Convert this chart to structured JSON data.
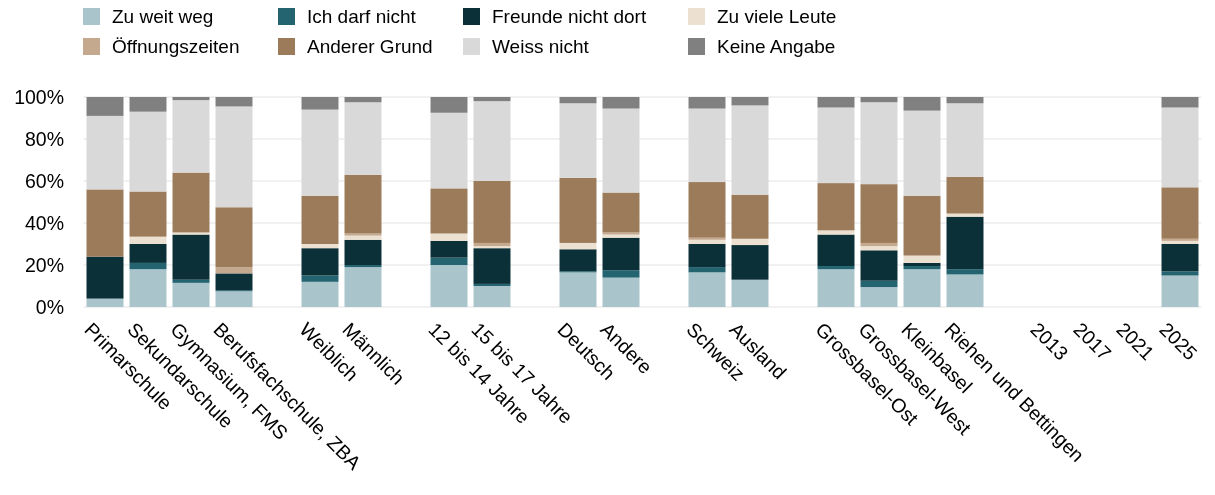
{
  "chart_data": {
    "type": "bar",
    "stacked": true,
    "categories": [
      "Primarschule",
      "Sekundarschule",
      "Gymnasium, FMS",
      "Berufsfachschule, ZBA",
      null,
      "Weiblich",
      "Männlich",
      null,
      "12 bis 14 Jahre",
      "15 bis 17 Jahre",
      null,
      "Deutsch",
      "Andere",
      null,
      "Schweiz",
      "Ausland",
      null,
      "Grossbasel-Ost",
      "Grossbasel-West",
      "Kleinbasel",
      "Riehen und Bettingen",
      null,
      "2013",
      "2017",
      "2021",
      "2025"
    ],
    "series": [
      {
        "name": "Zu weit weg",
        "color": "#a9c4cb",
        "values": [
          4,
          18,
          11.5,
          7.5,
          null,
          12,
          19,
          null,
          20,
          10,
          null,
          16.5,
          14,
          null,
          16.5,
          13,
          null,
          18,
          9.5,
          18,
          15.5,
          null,
          null,
          null,
          null,
          15
        ]
      },
      {
        "name": "Ich darf nicht",
        "color": "#236470",
        "values": [
          0,
          3,
          1.5,
          0.5,
          null,
          3,
          1,
          null,
          3.5,
          1,
          null,
          0.5,
          3.5,
          null,
          2.5,
          0,
          null,
          1.5,
          3,
          1.5,
          2.5,
          null,
          null,
          null,
          null,
          2
        ]
      },
      {
        "name": "Freunde nicht dort",
        "color": "#0b3038",
        "values": [
          20,
          9,
          21.5,
          8,
          null,
          13,
          12,
          null,
          8,
          17,
          null,
          10.5,
          15.5,
          null,
          11,
          16.5,
          null,
          15,
          14.5,
          1.5,
          25,
          null,
          null,
          null,
          null,
          13
        ]
      },
      {
        "name": "Zu viele Leute",
        "color": "#ece0d1",
        "values": [
          0,
          3.5,
          1,
          0,
          null,
          2,
          2,
          null,
          3.5,
          1,
          null,
          3,
          1.5,
          null,
          2,
          3,
          null,
          2,
          2,
          3.5,
          1.5,
          null,
          null,
          null,
          null,
          1.5
        ]
      },
      {
        "name": "Öffnungszeiten",
        "color": "#c4a98f",
        "values": [
          0,
          0,
          0,
          3,
          null,
          0,
          1,
          null,
          0,
          1.5,
          null,
          0,
          1,
          null,
          1,
          0,
          null,
          0,
          1.5,
          0,
          0,
          null,
          null,
          null,
          null,
          1
        ]
      },
      {
        "name": "Anderer Grund",
        "color": "#9c7b5a",
        "values": [
          32,
          21.5,
          28.5,
          28.5,
          null,
          23,
          28,
          null,
          21.5,
          29.5,
          null,
          31,
          19,
          null,
          26.5,
          21,
          null,
          22.5,
          28,
          28.5,
          17.5,
          null,
          null,
          null,
          null,
          24.5
        ]
      },
      {
        "name": "Weiss nicht",
        "color": "#d9d9d9",
        "values": [
          35,
          38,
          34.5,
          48,
          null,
          41,
          34.5,
          null,
          36,
          38,
          null,
          35.5,
          40,
          null,
          35,
          42.5,
          null,
          36,
          39,
          40.5,
          35,
          null,
          null,
          null,
          null,
          38
        ]
      },
      {
        "name": "Keine Angabe",
        "color": "#808080",
        "values": [
          9,
          7,
          1.5,
          4.5,
          null,
          6,
          2.5,
          null,
          7.5,
          2,
          null,
          3,
          5.5,
          null,
          5.5,
          4,
          null,
          5,
          2.5,
          6.5,
          3,
          null,
          null,
          null,
          null,
          5
        ]
      }
    ],
    "ylim": [
      0,
      100
    ],
    "yticks": [
      {
        "value": 0,
        "label": "0%"
      },
      {
        "value": 20,
        "label": "20%"
      },
      {
        "value": 40,
        "label": "40%"
      },
      {
        "value": 60,
        "label": "60%"
      },
      {
        "value": 80,
        "label": "80%"
      },
      {
        "value": 100,
        "label": "100%"
      }
    ],
    "grid": "y",
    "legend": "top"
  }
}
